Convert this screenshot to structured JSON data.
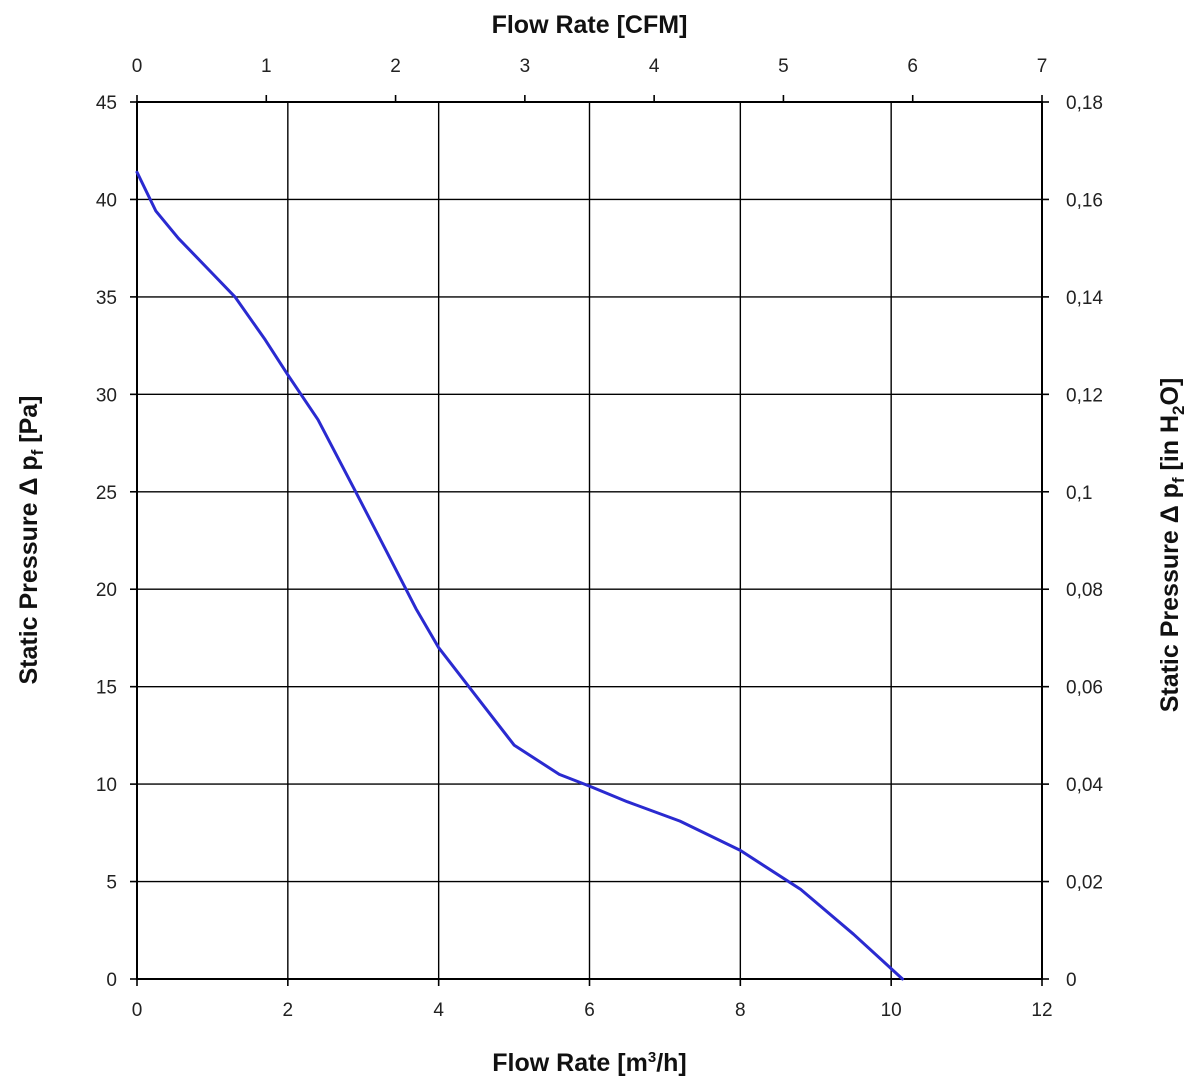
{
  "chart_data": {
    "type": "line",
    "x_bottom": {
      "label_main": "Flow Rate [m",
      "label_sup": "3",
      "label_tail": "/h]",
      "range": [
        0,
        12
      ],
      "ticks": [
        "0",
        "2",
        "4",
        "6",
        "8",
        "10",
        "12"
      ]
    },
    "x_top": {
      "label": "Flow Rate [CFM]",
      "range": [
        0,
        7
      ],
      "ticks": [
        "0",
        "1",
        "2",
        "3",
        "4",
        "5",
        "6",
        "7"
      ]
    },
    "y_left": {
      "label": "Static Pressure Δ p",
      "label_sub": "f",
      "label_tail": " [Pa]",
      "range": [
        0,
        45
      ],
      "ticks": [
        "0",
        "5",
        "10",
        "15",
        "20",
        "25",
        "30",
        "35",
        "40",
        "45"
      ]
    },
    "y_right": {
      "label": "Static Pressure Δ p",
      "label_sub": "f",
      "label_mid": " [in H",
      "label_sub2": "2",
      "label_tail": "O]",
      "range": [
        0,
        0.18
      ],
      "ticks": [
        "0",
        "0,02",
        "0,04",
        "0,06",
        "0,08",
        "0,1",
        "0,12",
        "0,14",
        "0,16",
        "0,18"
      ]
    },
    "grid": true,
    "series": [
      {
        "color": "#2a2ad0",
        "x": [
          0,
          0.25,
          0.55,
          1.0,
          1.3,
          1.7,
          2.0,
          2.4,
          2.9,
          3.3,
          3.7,
          4.0,
          4.5,
          5.0,
          5.6,
          6.0,
          6.5,
          7.2,
          8.0,
          8.8,
          9.5,
          10.15
        ],
        "y": [
          41.4,
          39.4,
          38.0,
          36.2,
          35.0,
          32.8,
          31.0,
          28.7,
          25.0,
          22.0,
          19.0,
          17.0,
          14.5,
          12.0,
          10.5,
          9.9,
          9.1,
          8.1,
          6.6,
          4.6,
          2.3,
          0
        ]
      }
    ]
  }
}
